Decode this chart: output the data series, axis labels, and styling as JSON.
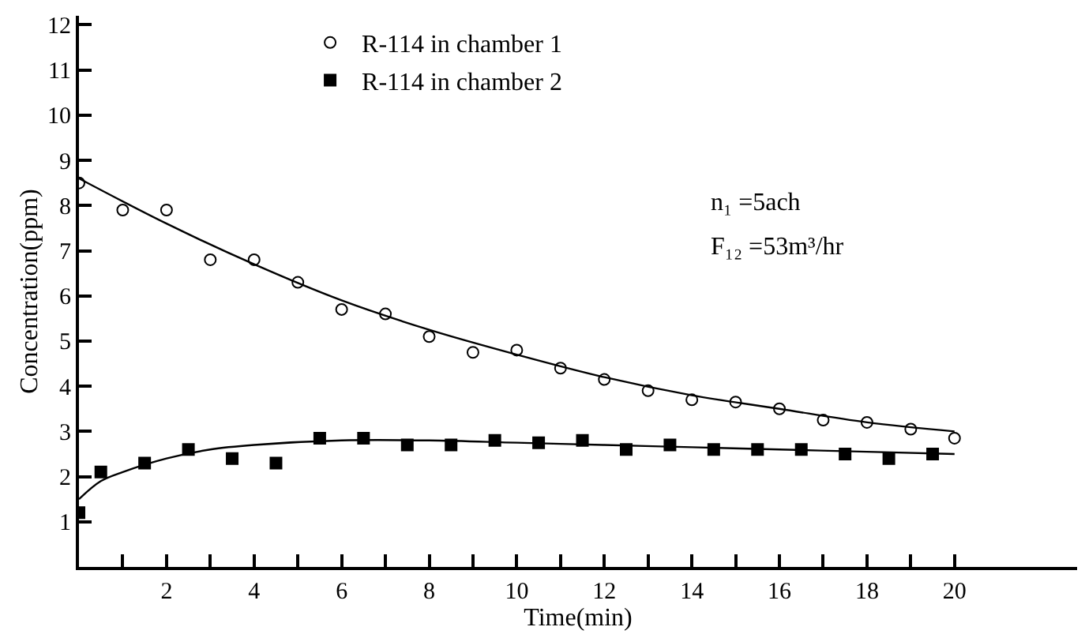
{
  "chart_data": {
    "type": "scatter",
    "xlabel": "Time(min)",
    "ylabel": "Concentration(ppm)",
    "xlim": [
      0,
      22.8
    ],
    "ylim": [
      0,
      12.2
    ],
    "xticks": [
      {
        "value": 1,
        "label": null
      },
      2,
      {
        "value": 3,
        "label": null
      },
      4,
      {
        "value": 5,
        "label": null
      },
      6,
      {
        "value": 7,
        "label": null
      },
      8,
      {
        "value": 9,
        "label": null
      },
      10,
      {
        "value": 11,
        "label": null
      },
      12,
      {
        "value": 13,
        "label": null
      },
      14,
      {
        "value": 15,
        "label": null
      },
      16,
      {
        "value": 17,
        "label": null
      },
      18,
      {
        "value": 19,
        "label": null
      },
      20
    ],
    "yticks": [
      1,
      2,
      3,
      4,
      5,
      6,
      7,
      8,
      9,
      10,
      11,
      12
    ],
    "legend": "top left",
    "annotations": [
      "n₁ =5ach",
      "F₁₂ =53m³/hr"
    ],
    "series": [
      {
        "name": "R-114 in chamber 1",
        "color": "#000000",
        "marker": "circle",
        "x": [
          0,
          1,
          2,
          3,
          4,
          5,
          6,
          7,
          8,
          9,
          10,
          11,
          12,
          13,
          14,
          15,
          16,
          17,
          18,
          19,
          20
        ],
        "values": [
          8.5,
          7.9,
          7.9,
          6.8,
          6.8,
          6.3,
          5.7,
          5.6,
          5.1,
          4.75,
          4.8,
          4.4,
          4.15,
          3.9,
          3.7,
          3.65,
          3.5,
          3.25,
          3.2,
          3.05,
          2.85
        ]
      },
      {
        "name": "R-114 in chamber 2",
        "color": "#000000",
        "marker": "square",
        "x": [
          0,
          0.5,
          1.5,
          2.5,
          3.5,
          4.5,
          5.5,
          6.5,
          7.5,
          8.5,
          9.5,
          10.5,
          11.5,
          12.5,
          13.5,
          14.5,
          15.5,
          16.5,
          17.5,
          18.5,
          19.5
        ],
        "values": [
          1.2,
          2.1,
          2.3,
          2.6,
          2.4,
          2.3,
          2.85,
          2.85,
          2.7,
          2.7,
          2.8,
          2.75,
          2.8,
          2.6,
          2.7,
          2.6,
          2.6,
          2.6,
          2.5,
          2.4,
          2.5
        ]
      },
      {
        "type": "line",
        "color": "#000000",
        "marker": "none",
        "x": [
          0,
          2,
          4,
          6,
          8,
          10,
          12,
          14,
          16,
          18,
          20
        ],
        "values": [
          8.6,
          7.6,
          6.7,
          5.9,
          5.25,
          4.7,
          4.2,
          3.8,
          3.5,
          3.2,
          3.0
        ]
      },
      {
        "type": "line",
        "color": "#000000",
        "marker": "none",
        "x": [
          0,
          0.5,
          1,
          2,
          3,
          4,
          6,
          8,
          10,
          12,
          14,
          16,
          18,
          20
        ],
        "values": [
          1.5,
          1.9,
          2.1,
          2.4,
          2.6,
          2.7,
          2.8,
          2.8,
          2.75,
          2.7,
          2.65,
          2.6,
          2.55,
          2.5
        ]
      }
    ]
  }
}
